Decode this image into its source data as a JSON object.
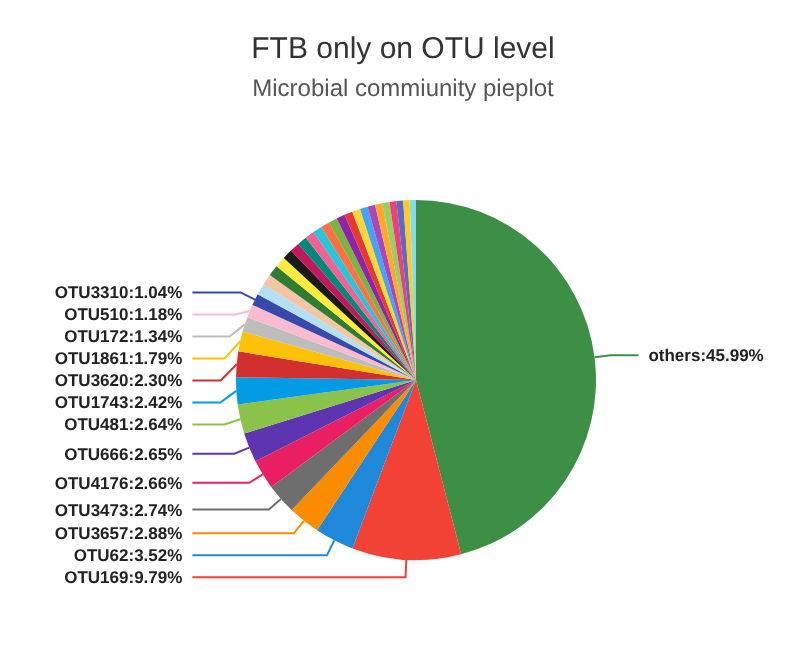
{
  "chart_data": {
    "type": "pie",
    "title": "FTB only on OTU level",
    "subtitle": "Microbial commiunity pieplot",
    "categories": [
      "others",
      "OTU169",
      "OTU62",
      "OTU3657",
      "OTU3473",
      "OTU4176",
      "OTU666",
      "OTU481",
      "OTU1743",
      "OTU3620",
      "OTU1861",
      "OTU172",
      "OTU510",
      "OTU3310",
      null,
      null,
      null,
      null,
      null,
      null,
      null,
      null,
      null,
      null,
      null,
      null,
      null,
      null,
      null,
      null,
      null,
      null,
      null,
      null,
      null,
      null
    ],
    "values": [
      45.99,
      9.79,
      3.52,
      2.88,
      2.74,
      2.66,
      2.65,
      2.64,
      2.42,
      2.3,
      1.79,
      1.34,
      1.18,
      1.04,
      1.02,
      1.0,
      0.98,
      0.98,
      0.9,
      0.88,
      0.86,
      0.84,
      0.82,
      0.8,
      0.78,
      0.76,
      0.74,
      0.72,
      0.7,
      0.68,
      0.66,
      0.64,
      0.62,
      0.6,
      0.58,
      0.56
    ],
    "colors": [
      "#3d8f45",
      "#f24236",
      "#1f88d9",
      "#fb8c00",
      "#6e6e6e",
      "#e91e63",
      "#5e35b1",
      "#8bc34a",
      "#039be5",
      "#d32f2f",
      "#ffc107",
      "#bdbdbd",
      "#f8bbd0",
      "#3949ab",
      "#b3e0f2",
      "#f5c6a5",
      "#2e7d32",
      "#ffeb3b",
      "#1a1a1a",
      "#c2185b",
      "#00897b",
      "#f06292",
      "#26c6da",
      "#ff7043",
      "#7cb342",
      "#8e24aa",
      "#e53935",
      "#fdd835",
      "#42a5f5",
      "#ab47bc",
      "#ffa726",
      "#9ccc65",
      "#ec407a",
      "#5c6bc0",
      "#ffca28",
      "#80deea"
    ],
    "value_labels": [
      "45.99%",
      "9.79%",
      "3.52%",
      "2.88%",
      "2.74%",
      "2.66%",
      "2.65%",
      "2.64%",
      "2.42%",
      "2.30%",
      "1.79%",
      "1.34%",
      "1.18%",
      "1.04%",
      null,
      null,
      null,
      null,
      null,
      null,
      null,
      null,
      null,
      null,
      null,
      null,
      null,
      null,
      null,
      null,
      null,
      null,
      null,
      null,
      null,
      null
    ]
  }
}
